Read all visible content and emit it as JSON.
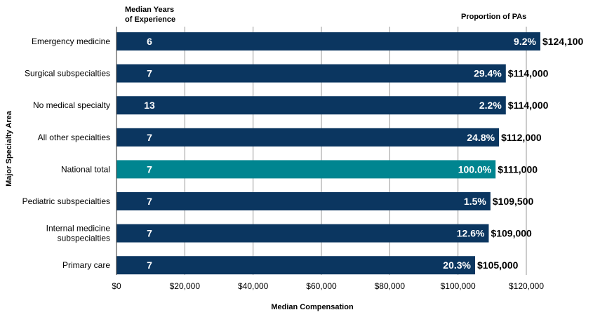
{
  "chart_data": {
    "type": "bar",
    "orientation": "horizontal",
    "xlabel": "Median Compensation",
    "ylabel": "Major Specialty Area",
    "xlim": [
      0,
      120000
    ],
    "x_ticks": [
      "$0",
      "$20,000",
      "$40,000",
      "$60,000",
      "$80,000",
      "$100,000",
      "$120,000"
    ],
    "x_tick_values": [
      0,
      20000,
      40000,
      60000,
      80000,
      100000,
      120000
    ],
    "grid": "vertical",
    "col_header_left": [
      "Median Years",
      "of Experience"
    ],
    "col_header_right": "Proportion of PAs",
    "colors": {
      "default": "#0b3660",
      "highlight": "#008590"
    },
    "categories": [
      [
        "Emergency medicine"
      ],
      [
        "Surgical subspecialties"
      ],
      [
        "No medical specialty"
      ],
      [
        "All other specialties"
      ],
      [
        "National total"
      ],
      [
        "Pediatric subspecialties"
      ],
      [
        "Internal medicine",
        "subspecialties"
      ],
      [
        "Primary care"
      ]
    ],
    "values": [
      124100,
      114000,
      114000,
      112000,
      111000,
      109500,
      109000,
      105000
    ],
    "value_labels": [
      "$124,100",
      "$114,000",
      "$114,000",
      "$112,000",
      "$111,000",
      "$109,500",
      "$109,000",
      "$105,000"
    ],
    "median_years": [
      "6",
      "7",
      "13",
      "7",
      "7",
      "7",
      "7",
      "7"
    ],
    "proportion": [
      "9.2%",
      "29.4%",
      "2.2%",
      "24.8%",
      "100.0%",
      "1.5%",
      "12.6%",
      "20.3%"
    ],
    "highlight_index": 4
  }
}
